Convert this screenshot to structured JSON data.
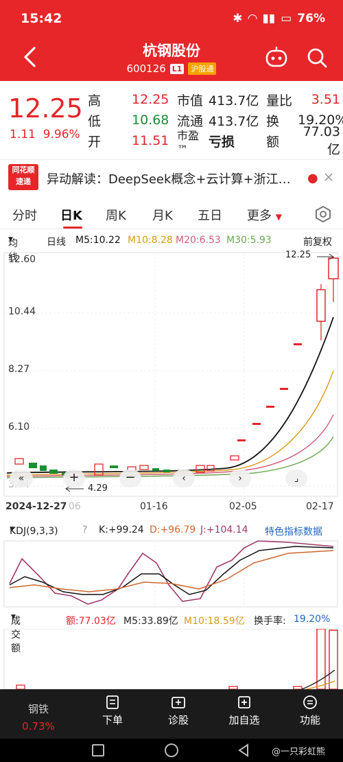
{
  "status": {
    "time": "15:42",
    "icons": [
      "bluetooth-icon",
      "wifi-icon",
      "5g-signal-icon",
      "battery-icon"
    ],
    "battery": "76%"
  },
  "header": {
    "title": "杭钢股份",
    "code": "600126",
    "badge_l1": "L1",
    "badge_market": "沪股通"
  },
  "quote": {
    "price": "12.25",
    "change": "1.11",
    "change_pct": "9.96%",
    "rows": [
      {
        "l1": "高",
        "v1": "12.25",
        "l2": "市值",
        "v2": "413.7亿",
        "l3": "量比",
        "v3": "3.51"
      },
      {
        "l1": "低",
        "v1": "10.68",
        "l2": "流通",
        "v2": "413.7亿",
        "l3": "换",
        "v3": "19.20%"
      },
      {
        "l1": "开",
        "v1": "11.51",
        "l2": "市盈™",
        "v2": "亏损",
        "l3": "额",
        "v3": "77.03亿"
      }
    ]
  },
  "news": {
    "logo_line1": "同花顺",
    "logo_line2": "速递",
    "text": "异动解读：DeepSeek概念+云计算+浙江…"
  },
  "tabs": [
    "分时",
    "日K",
    "周K",
    "月K",
    "五日",
    "更多"
  ],
  "ma_line": {
    "mode": "均线",
    "period": "日线",
    "m5": "M5:10.22",
    "m10": "M10:8.28",
    "m20": "M20:6.53",
    "m30": "M30:5.93",
    "adj": "前复权"
  },
  "axis": {
    "y_labels": [
      "12.60",
      "10.44",
      "8.27",
      "6.10",
      "3.94"
    ],
    "x_labels": [
      "2024-12-27",
      "01-16",
      "02-05",
      "02-17"
    ],
    "hi_label": "12.25",
    "lo_label": "4.29",
    "x_partial": "06"
  },
  "kdj": {
    "label": "KDJ(9,3,3)",
    "k": "K:+99.24",
    "d": "D:+96.79",
    "j": "J:+104.14",
    "link": "特色指标数据"
  },
  "volume": {
    "label": "成交额",
    "amount": "额:77.03亿",
    "m5": "M5:33.89亿",
    "m10": "M10:18.59亿",
    "turnover_label": "换手率:",
    "turnover": "19.20%"
  },
  "bottom": {
    "sector": "钢铁",
    "sector_pct": "0.73%",
    "items": [
      "下单",
      "诊股",
      "加自选",
      "功能"
    ]
  },
  "watermark": "@一只彩虹熊",
  "colors": {
    "up": "#e4252a",
    "down": "#1a8f2f",
    "m5": "#111111",
    "m10": "#d89a1a",
    "m20": "#d05a7a",
    "m30": "#6aa84f"
  },
  "chart_data": {
    "type": "candlestick",
    "ylim": [
      3.94,
      12.6
    ],
    "candles_recent": [
      {
        "o": 5.6,
        "c": 5.9
      },
      {
        "o": 6.1,
        "c": 6.3
      },
      {
        "o": 6.9,
        "c": 7.0
      },
      {
        "o": 7.5,
        "c": 7.7
      },
      {
        "o": 8.2,
        "c": 8.4
      },
      {
        "o": 9.0,
        "c": 9.2
      },
      {
        "o": 9.7,
        "c": 9.9
      },
      {
        "o": 10.2,
        "c": 11.2,
        "h": 11.4,
        "l": 10.0
      },
      {
        "o": 11.51,
        "c": 12.25,
        "h": 12.25,
        "l": 10.68
      }
    ]
  }
}
